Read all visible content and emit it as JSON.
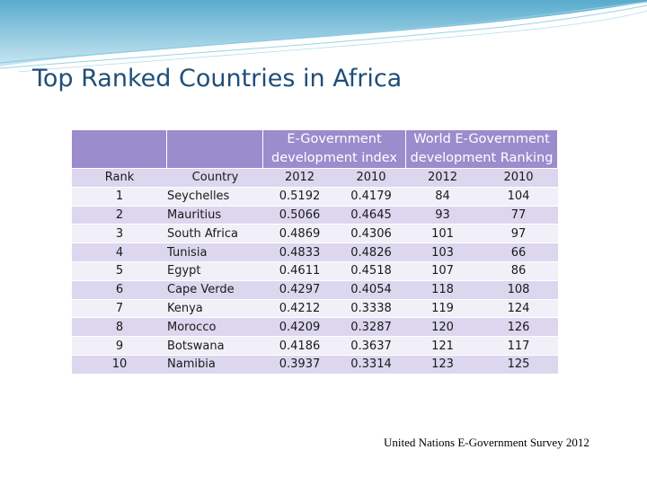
{
  "slide": {
    "title": "Top Ranked Countries in Africa",
    "source": "United Nations E-Government Survey 2012"
  },
  "table": {
    "group_headers": {
      "egov_index": "E-Government development index",
      "world_ranking": "World E-Government development Ranking"
    },
    "columns": [
      "Rank",
      "Country",
      "2012",
      "2010",
      "2012",
      "2010"
    ],
    "rows": [
      [
        "1",
        "Seychelles",
        "0.5192",
        "0.4179",
        "84",
        "104"
      ],
      [
        "2",
        "Mauritius",
        "0.5066",
        "0.4645",
        "93",
        "77"
      ],
      [
        "3",
        "South Africa",
        "0.4869",
        "0.4306",
        "101",
        "97"
      ],
      [
        "4",
        "Tunisia",
        "0.4833",
        "0.4826",
        "103",
        "66"
      ],
      [
        "5",
        "Egypt",
        "0.4611",
        "0.4518",
        "107",
        "86"
      ],
      [
        "6",
        "Cape Verde",
        "0.4297",
        "0.4054",
        "118",
        "108"
      ],
      [
        "7",
        "Kenya",
        "0.4212",
        "0.3338",
        "119",
        "124"
      ],
      [
        "8",
        "Morocco",
        "0.4209",
        "0.3287",
        "120",
        "126"
      ],
      [
        "9",
        "Botswana",
        "0.4186",
        "0.3637",
        "121",
        "117"
      ],
      [
        "10",
        "Namibia",
        "0.3937",
        "0.3314",
        "123",
        "125"
      ]
    ]
  },
  "colors": {
    "header_bg": "#9b8ccd",
    "row_dark": "#dcd7ee",
    "row_light": "#f1eff8",
    "title": "#1f4e79",
    "swoosh": "#4aa3c8"
  }
}
